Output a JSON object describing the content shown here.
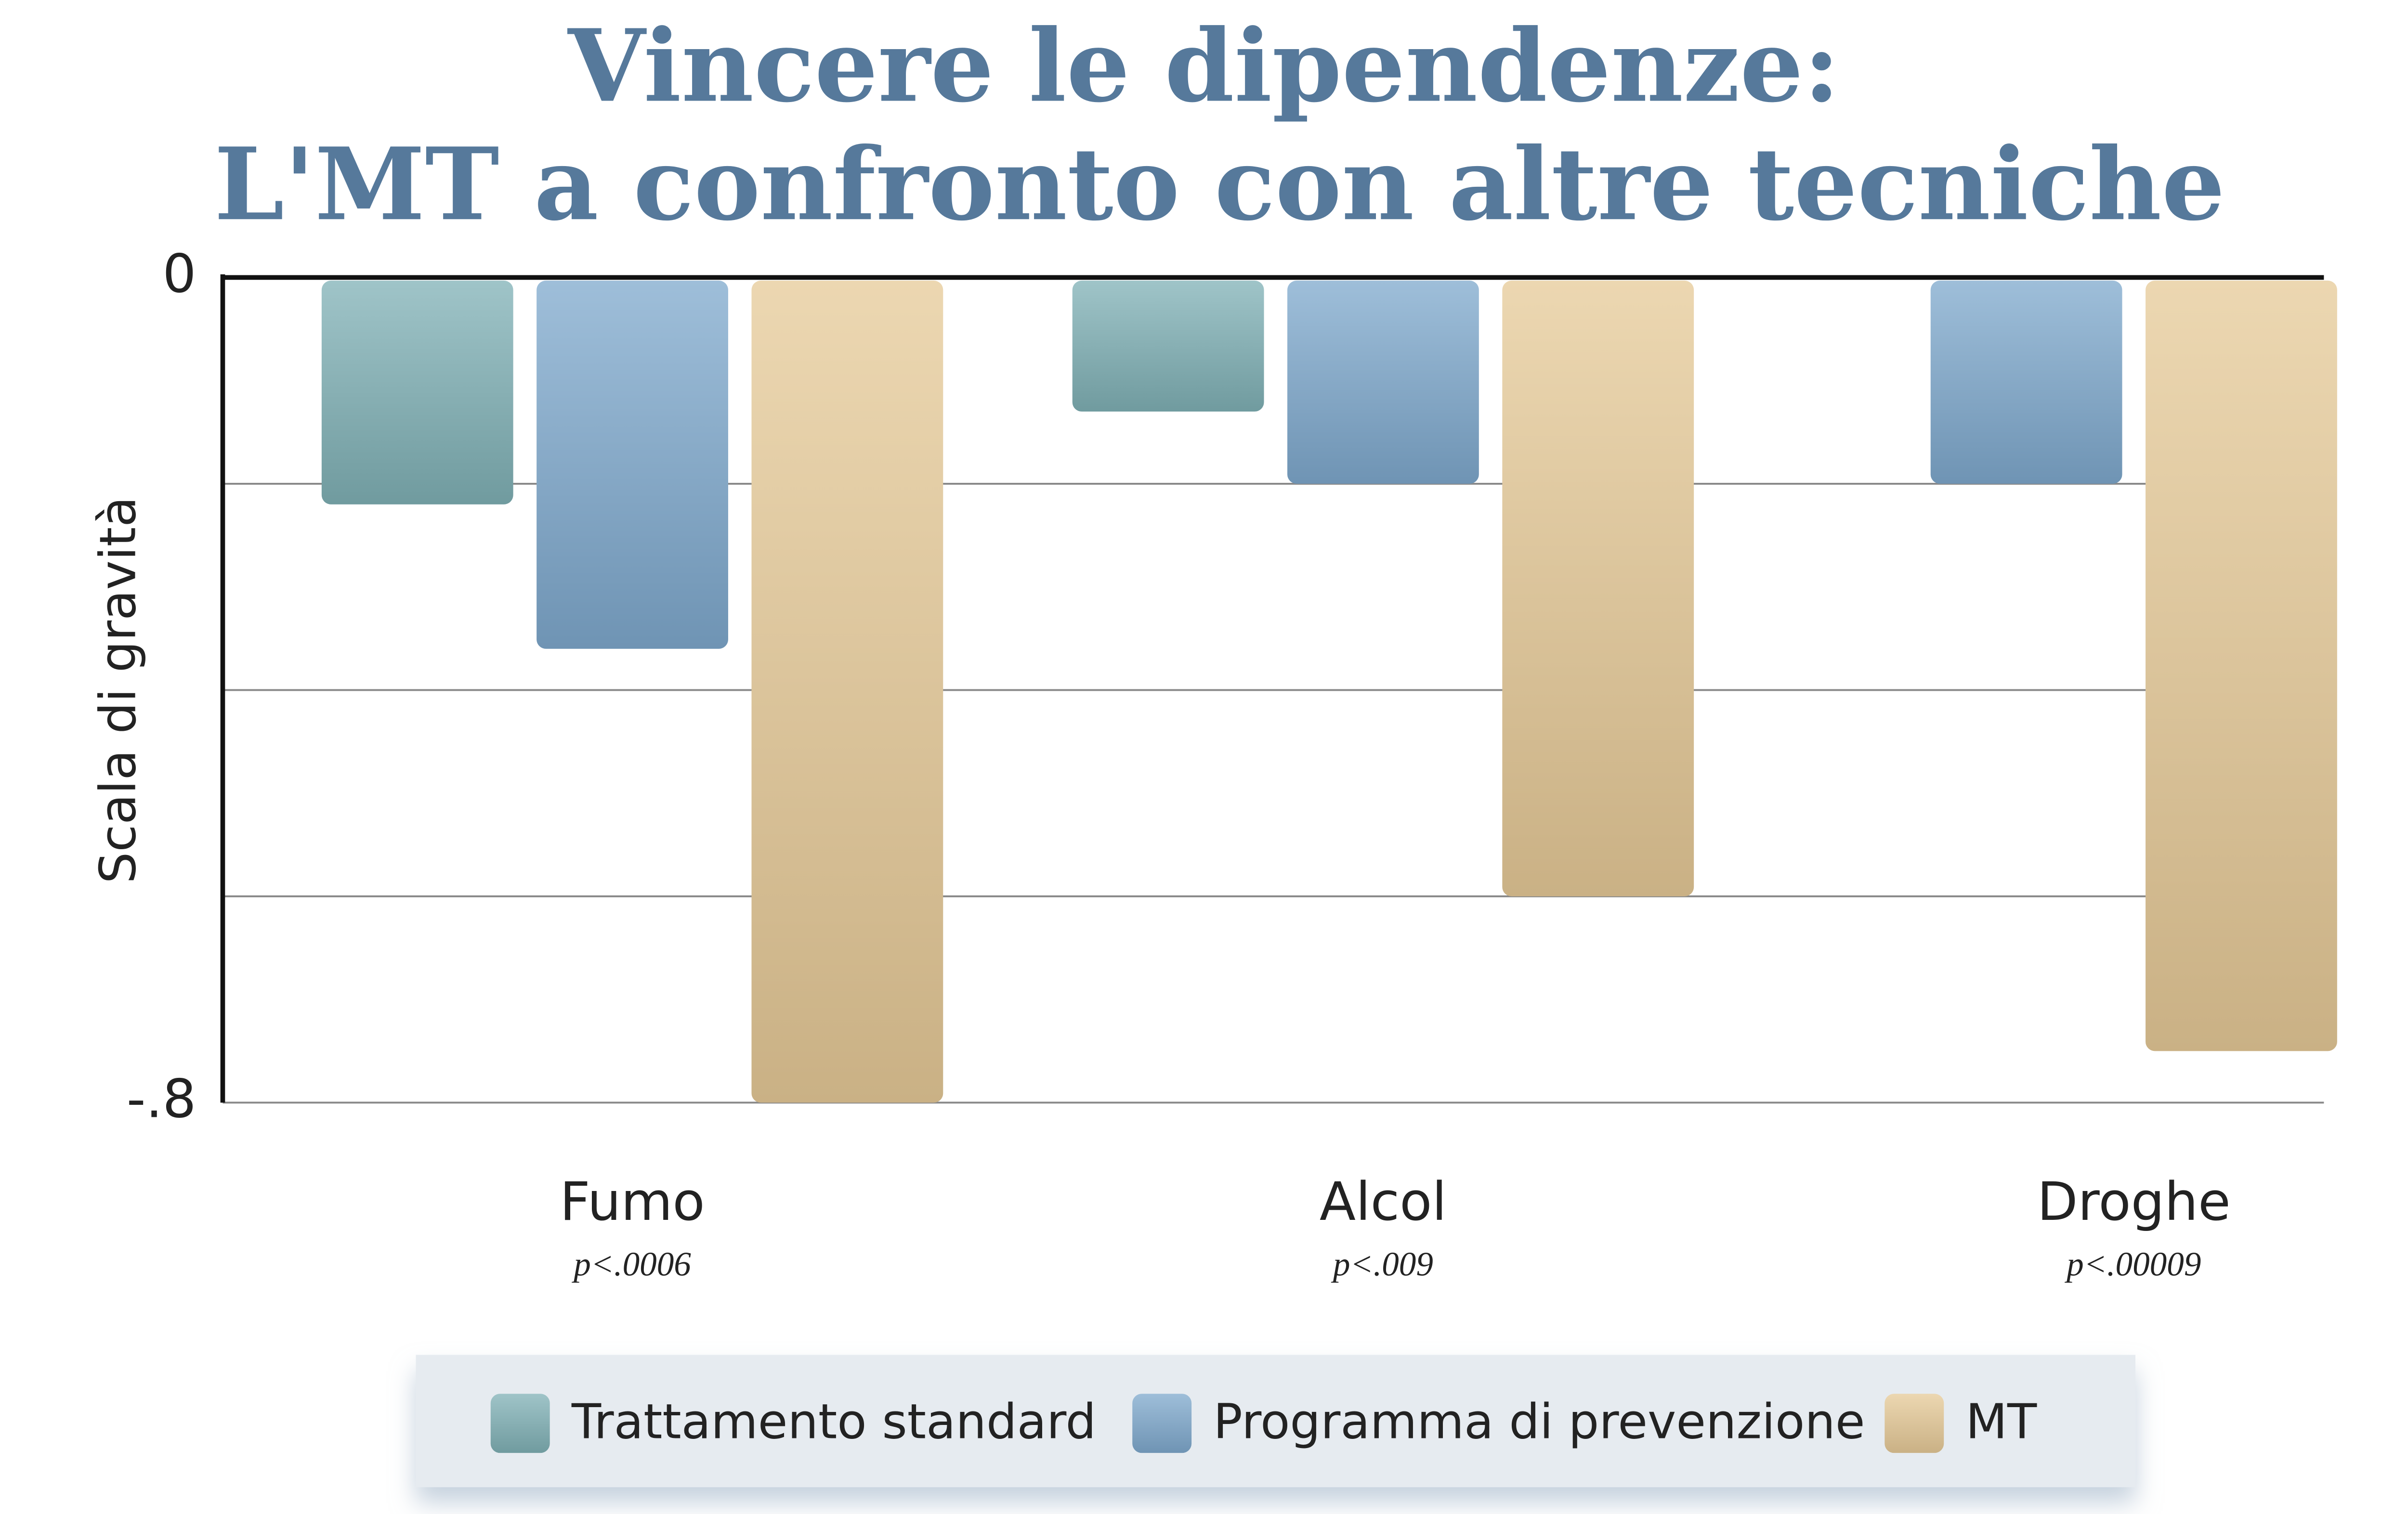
{
  "chart_data": {
    "type": "bar",
    "title": [
      "Vincere le dipendenze:",
      "L'MT a confronto con altre tecniche"
    ],
    "y_label": "Scala di gravità",
    "categories": [
      "Fumo",
      "Alcol",
      "Droghe"
    ],
    "category_notes": [
      "p<.0006",
      "p<.009",
      "p<.00009"
    ],
    "series": [
      {
        "name": "Trattamento standard",
        "color": "#7fb0b5",
        "values": [
          -0.22,
          -0.13,
          null
        ]
      },
      {
        "name": "Programma di prevenzione",
        "color": "#7ea8cc",
        "values": [
          -0.36,
          -0.2,
          -0.2
        ]
      },
      {
        "name": "MT",
        "color": "#e5c997",
        "values": [
          -0.8,
          -0.6,
          -0.75
        ]
      }
    ],
    "ylim": [
      0,
      -0.8
    ],
    "yticks": [
      0,
      {
        "value": -0.8,
        "label": "-.8"
      }
    ],
    "ygrid": [
      -0.2,
      -0.4,
      -0.6
    ],
    "legend": "bottom"
  }
}
